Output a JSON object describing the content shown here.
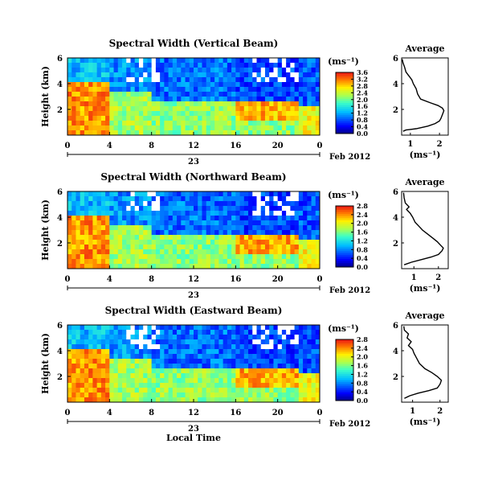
{
  "figure": {
    "date_label": "Feb 2012",
    "day_label": "23",
    "xlabel_bottom": "Local Time"
  },
  "chart_data": [
    {
      "type": "heatmap",
      "title": "Spectral Width (Vertical Beam)",
      "ylabel": "Height (km)",
      "yticks": [
        "2",
        "4",
        "6"
      ],
      "ylim": [
        0,
        6
      ],
      "xticks": [
        "0",
        "4",
        "8",
        "12",
        "16",
        "20",
        "0"
      ],
      "xlim": [
        0,
        24
      ],
      "colorbar": {
        "unit": "(ms⁻¹)",
        "ticks": [
          "3.6",
          "3.2",
          "2.8",
          "2.4",
          "2.0",
          "1.6",
          "1.2",
          "0.8",
          "0.4",
          "0.0"
        ],
        "range": [
          0,
          3.6
        ]
      },
      "profile": {
        "title": "Average",
        "xlabel": "(ms⁻¹)",
        "xticks": [
          "1",
          "2"
        ],
        "xlim": [
          0.7,
          2.3
        ],
        "yticks": [
          "2",
          "4",
          "6"
        ],
        "ylim": [
          0,
          6
        ],
        "points": [
          [
            0.75,
            0.3
          ],
          [
            0.85,
            0.4
          ],
          [
            1.2,
            0.5
          ],
          [
            1.6,
            0.7
          ],
          [
            1.85,
            0.9
          ],
          [
            2.0,
            1.1
          ],
          [
            2.05,
            1.3
          ],
          [
            2.1,
            1.6
          ],
          [
            2.15,
            1.9
          ],
          [
            2.1,
            2.1
          ],
          [
            1.95,
            2.3
          ],
          [
            1.7,
            2.5
          ],
          [
            1.35,
            2.8
          ],
          [
            1.25,
            3.2
          ],
          [
            1.2,
            3.6
          ],
          [
            1.1,
            4.0
          ],
          [
            1.05,
            4.3
          ],
          [
            0.95,
            4.6
          ],
          [
            0.85,
            4.9
          ],
          [
            0.8,
            5.3
          ],
          [
            0.75,
            5.6
          ],
          [
            0.72,
            5.9
          ]
        ]
      }
    },
    {
      "type": "heatmap",
      "title": "Spectral Width (Northward Beam)",
      "ylabel": "Height (km)",
      "yticks": [
        "2",
        "4",
        "6"
      ],
      "ylim": [
        0,
        6
      ],
      "xticks": [
        "0",
        "4",
        "8",
        "12",
        "16",
        "20",
        "0"
      ],
      "xlim": [
        0,
        24
      ],
      "colorbar": {
        "unit": "(ms⁻¹)",
        "ticks": [
          "2.8",
          "2.4",
          "2.0",
          "1.6",
          "1.2",
          "0.8",
          "0.4",
          "0.0"
        ],
        "range": [
          0,
          2.8
        ]
      },
      "profile": {
        "title": "Average",
        "xlabel": "(ms⁻¹)",
        "xticks": [
          "1",
          "2"
        ],
        "xlim": [
          0.5,
          2.4
        ],
        "yticks": [
          "2",
          "4",
          "6"
        ],
        "ylim": [
          0,
          6
        ],
        "points": [
          [
            0.6,
            0.3
          ],
          [
            0.9,
            0.5
          ],
          [
            1.3,
            0.7
          ],
          [
            1.7,
            0.9
          ],
          [
            2.0,
            1.1
          ],
          [
            2.15,
            1.4
          ],
          [
            2.2,
            1.6
          ],
          [
            2.1,
            1.8
          ],
          [
            1.95,
            2.1
          ],
          [
            1.75,
            2.4
          ],
          [
            1.55,
            2.7
          ],
          [
            1.35,
            3.0
          ],
          [
            1.2,
            3.3
          ],
          [
            1.05,
            3.6
          ],
          [
            0.95,
            4.0
          ],
          [
            0.85,
            4.3
          ],
          [
            0.7,
            4.6
          ],
          [
            0.8,
            4.8
          ],
          [
            0.65,
            5.1
          ],
          [
            0.6,
            5.5
          ],
          [
            0.58,
            5.9
          ]
        ]
      }
    },
    {
      "type": "heatmap",
      "title": "Spectral Width (Eastward Beam)",
      "ylabel": "Height (km)",
      "yticks": [
        "2",
        "4",
        "6"
      ],
      "ylim": [
        0,
        6
      ],
      "xticks": [
        "0",
        "4",
        "8",
        "12",
        "16",
        "20",
        "0"
      ],
      "xlim": [
        0,
        24
      ],
      "colorbar": {
        "unit": "(ms⁻¹)",
        "ticks": [
          "2.8",
          "2.4",
          "2.0",
          "1.6",
          "1.2",
          "0.8",
          "0.4",
          "0.0"
        ],
        "range": [
          0,
          2.8
        ]
      },
      "profile": {
        "title": "Average",
        "xlabel": "(ms⁻¹)",
        "xticks": [
          "1",
          "2"
        ],
        "xlim": [
          0.6,
          2.3
        ],
        "yticks": [
          "2",
          "4",
          "6"
        ],
        "ylim": [
          0,
          6
        ],
        "points": [
          [
            0.7,
            0.3
          ],
          [
            0.9,
            0.5
          ],
          [
            1.2,
            0.7
          ],
          [
            1.6,
            0.9
          ],
          [
            1.9,
            1.1
          ],
          [
            2.0,
            1.4
          ],
          [
            2.05,
            1.7
          ],
          [
            1.9,
            2.0
          ],
          [
            1.7,
            2.3
          ],
          [
            1.45,
            2.6
          ],
          [
            1.25,
            3.0
          ],
          [
            1.15,
            3.4
          ],
          [
            1.05,
            3.8
          ],
          [
            1.0,
            4.1
          ],
          [
            0.85,
            4.4
          ],
          [
            0.95,
            4.7
          ],
          [
            0.8,
            5.0
          ],
          [
            0.85,
            5.3
          ],
          [
            0.7,
            5.6
          ],
          [
            0.68,
            5.9
          ]
        ]
      }
    }
  ]
}
